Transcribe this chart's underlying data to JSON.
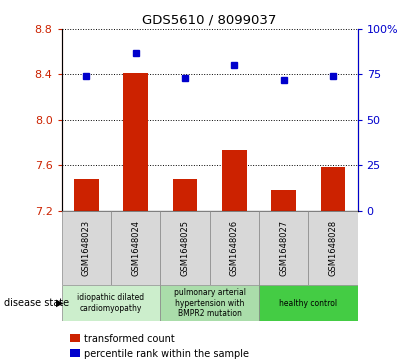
{
  "title": "GDS5610 / 8099037",
  "samples": [
    "GSM1648023",
    "GSM1648024",
    "GSM1648025",
    "GSM1648026",
    "GSM1648027",
    "GSM1648028"
  ],
  "bar_values": [
    7.48,
    8.41,
    7.48,
    7.73,
    7.38,
    7.58
  ],
  "dot_values": [
    74,
    87,
    73,
    80,
    72,
    74
  ],
  "ylim_left": [
    7.2,
    8.8
  ],
  "ylim_right": [
    0,
    100
  ],
  "yticks_left": [
    7.2,
    7.6,
    8.0,
    8.4,
    8.8
  ],
  "yticks_right": [
    0,
    25,
    50,
    75,
    100
  ],
  "bar_color": "#cc2200",
  "dot_color": "#0000cc",
  "bg_color": "#d8d8d8",
  "disease_groups": [
    {
      "label": "idiopathic dilated\ncardiomyopathy",
      "span": [
        0,
        2
      ],
      "color": "#cceecc"
    },
    {
      "label": "pulmonary arterial\nhypertension with\nBMPR2 mutation",
      "span": [
        2,
        4
      ],
      "color": "#aaddaa"
    },
    {
      "label": "healthy control",
      "span": [
        4,
        6
      ],
      "color": "#44cc44"
    }
  ],
  "legend_bar_label": "transformed count",
  "legend_dot_label": "percentile rank within the sample",
  "disease_state_label": "disease state"
}
